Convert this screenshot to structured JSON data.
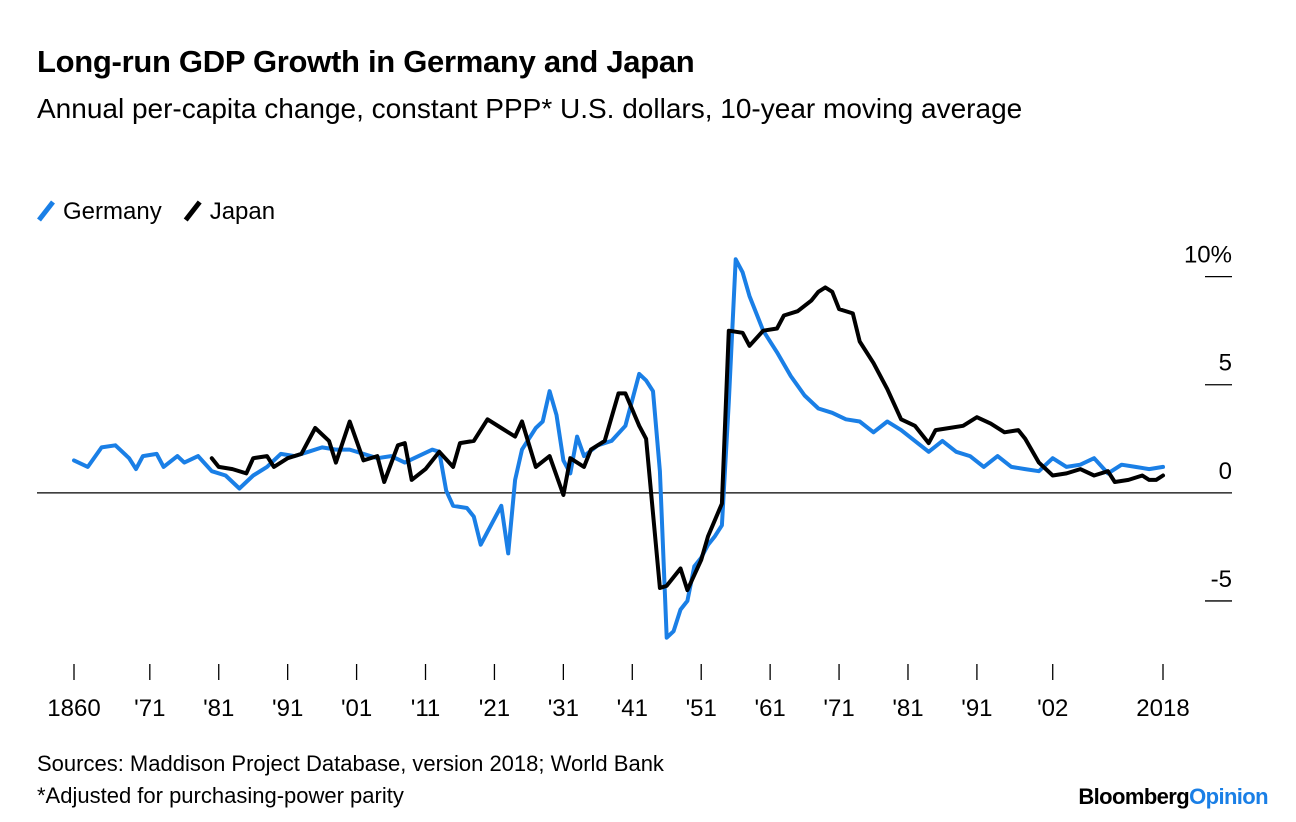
{
  "chart_data": {
    "type": "line",
    "title": "Long-run GDP Growth in Germany and Japan",
    "subtitle": "Annual per-capita change, constant PPP* U.S. dollars, 10-year moving average",
    "source": "Sources: Maddison Project Database, version 2018; World Bank",
    "note": "*Adjusted for purchasing-power parity",
    "brand": [
      "Bloomberg",
      "Opinion"
    ],
    "xlim": [
      1860,
      2018
    ],
    "xticks": [
      1860,
      {
        "value": 1871,
        "label": "'71"
      },
      {
        "value": 1881,
        "label": "'81"
      },
      {
        "value": 1891,
        "label": "'91"
      },
      {
        "value": 1901,
        "label": "'01"
      },
      {
        "value": 1911,
        "label": "'11"
      },
      {
        "value": 1921,
        "label": "'21"
      },
      {
        "value": 1931,
        "label": "'31"
      },
      {
        "value": 1941,
        "label": "'41"
      },
      {
        "value": 1951,
        "label": "'51"
      },
      {
        "value": 1961,
        "label": "'61"
      },
      {
        "value": 1971,
        "label": "'71"
      },
      {
        "value": 1981,
        "label": "'81"
      },
      {
        "value": 1991,
        "label": "'91"
      },
      {
        "value": 2002,
        "label": "'02"
      },
      2018
    ],
    "ylim": [
      -7.5,
      11
    ],
    "yticks": [
      -5,
      0,
      5,
      {
        "value": 10,
        "label": "10%"
      }
    ],
    "series": [
      {
        "name": "Germany",
        "color": "#1a7fe6",
        "x": [
          1860,
          1862,
          1864,
          1866,
          1868,
          1869,
          1870,
          1872,
          1873,
          1875,
          1876,
          1878,
          1880,
          1882,
          1884,
          1886,
          1888,
          1890,
          1892,
          1894,
          1896,
          1898,
          1900,
          1902,
          1904,
          1906,
          1908,
          1910,
          1912,
          1913,
          1914,
          1915,
          1917,
          1918,
          1919,
          1920,
          1922,
          1923,
          1924,
          1925,
          1927,
          1928,
          1929,
          1930,
          1931,
          1932,
          1933,
          1934,
          1936,
          1938,
          1940,
          1942,
          1943,
          1944,
          1945,
          1946,
          1947,
          1948,
          1949,
          1950,
          1951,
          1952,
          1953,
          1954,
          1955,
          1956,
          1957,
          1958,
          1960,
          1962,
          1964,
          1966,
          1968,
          1970,
          1972,
          1974,
          1976,
          1978,
          1980,
          1982,
          1984,
          1986,
          1988,
          1990,
          1992,
          1994,
          1996,
          1998,
          2000,
          2002,
          2004,
          2006,
          2008,
          2010,
          2012,
          2014,
          2016,
          2018
        ],
        "values": [
          1.5,
          1.2,
          2.1,
          2.2,
          1.6,
          1.1,
          1.7,
          1.8,
          1.2,
          1.7,
          1.4,
          1.7,
          1.0,
          0.8,
          0.2,
          0.8,
          1.2,
          1.8,
          1.7,
          1.9,
          2.1,
          2.0,
          2.0,
          1.8,
          1.6,
          1.7,
          1.4,
          1.7,
          2.0,
          1.9,
          0.1,
          -0.6,
          -0.7,
          -1.1,
          -2.4,
          -1.8,
          -0.6,
          -2.8,
          0.6,
          2.0,
          3.0,
          3.3,
          4.7,
          3.6,
          1.5,
          0.9,
          2.6,
          1.7,
          2.2,
          2.4,
          3.1,
          5.5,
          5.2,
          4.7,
          1.0,
          -6.7,
          -6.4,
          -5.4,
          -5.0,
          -3.4,
          -3.0,
          -2.4,
          -2.0,
          -1.5,
          4.2,
          10.8,
          10.2,
          9.1,
          7.5,
          6.5,
          5.4,
          4.5,
          3.9,
          3.7,
          3.4,
          3.3,
          2.8,
          3.3,
          2.9,
          2.4,
          1.9,
          2.4,
          1.9,
          1.7,
          1.2,
          1.7,
          1.2,
          1.1,
          1.0,
          1.6,
          1.2,
          1.3,
          1.6,
          0.9,
          1.3,
          1.2,
          1.1,
          1.2
        ]
      },
      {
        "name": "Japan",
        "color": "#000000",
        "x": [
          1880,
          1881,
          1883,
          1885,
          1886,
          1888,
          1889,
          1891,
          1893,
          1895,
          1897,
          1898,
          1900,
          1902,
          1904,
          1905,
          1907,
          1908,
          1909,
          1911,
          1913,
          1915,
          1916,
          1918,
          1920,
          1922,
          1924,
          1925,
          1927,
          1929,
          1931,
          1932,
          1934,
          1935,
          1937,
          1939,
          1940,
          1942,
          1943,
          1945,
          1946,
          1948,
          1949,
          1951,
          1952,
          1954,
          1955,
          1957,
          1958,
          1960,
          1962,
          1963,
          1965,
          1967,
          1968,
          1969,
          1970,
          1971,
          1973,
          1974,
          1976,
          1978,
          1980,
          1982,
          1984,
          1985,
          1987,
          1989,
          1991,
          1993,
          1995,
          1997,
          1998,
          2000,
          2002,
          2004,
          2006,
          2008,
          2010,
          2011,
          2013,
          2015,
          2016,
          2017,
          2018
        ],
        "values": [
          1.6,
          1.2,
          1.1,
          0.9,
          1.6,
          1.7,
          1.2,
          1.6,
          1.8,
          3.0,
          2.4,
          1.4,
          3.3,
          1.5,
          1.7,
          0.5,
          2.2,
          2.3,
          0.6,
          1.1,
          1.9,
          1.2,
          2.3,
          2.4,
          3.4,
          3.0,
          2.6,
          3.3,
          1.2,
          1.7,
          -0.1,
          1.6,
          1.2,
          2.0,
          2.4,
          4.6,
          4.6,
          3.1,
          2.5,
          -4.4,
          -4.3,
          -3.5,
          -4.5,
          -3.1,
          -2.0,
          -0.5,
          7.5,
          7.4,
          6.8,
          7.5,
          7.6,
          8.2,
          8.4,
          8.9,
          9.3,
          9.5,
          9.3,
          8.5,
          8.3,
          7.0,
          6.0,
          4.8,
          3.4,
          3.1,
          2.3,
          2.9,
          3.0,
          3.1,
          3.5,
          3.2,
          2.8,
          2.9,
          2.5,
          1.4,
          0.8,
          0.9,
          1.1,
          0.8,
          1.0,
          0.5,
          0.6,
          0.8,
          0.6,
          0.6,
          0.8
        ]
      }
    ]
  }
}
